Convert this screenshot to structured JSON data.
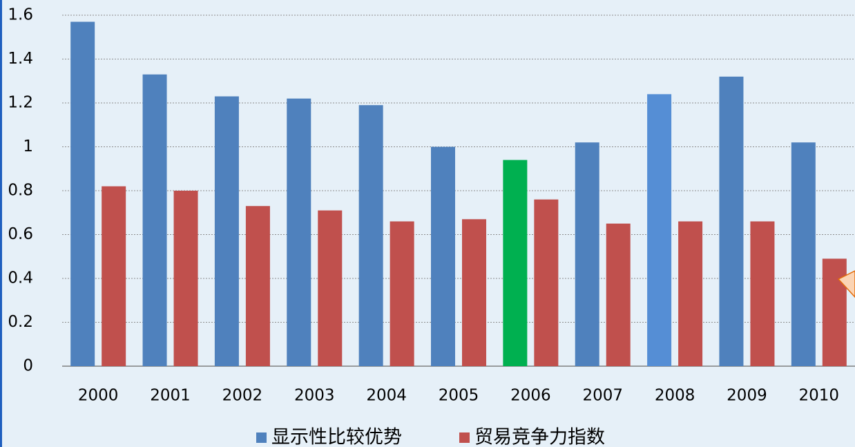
{
  "chart_data": {
    "type": "bar",
    "categories": [
      "2000",
      "2001",
      "2002",
      "2003",
      "2004",
      "2005",
      "2006",
      "2007",
      "2008",
      "2009",
      "2010"
    ],
    "series": [
      {
        "name": "显示性比较优势",
        "color": "#4f81bd",
        "colors": [
          "#4f81bd",
          "#4f81bd",
          "#4f81bd",
          "#4f81bd",
          "#4f81bd",
          "#4f81bd",
          "#00b050",
          "#4f81bd",
          "#558ed5",
          "#4f81bd",
          "#4f81bd"
        ],
        "values": [
          1.57,
          1.33,
          1.23,
          1.22,
          1.19,
          1.0,
          0.94,
          1.02,
          1.24,
          1.32,
          1.02
        ]
      },
      {
        "name": "贸易竞争力指数",
        "color": "#c0504d",
        "values": [
          0.82,
          0.8,
          0.73,
          0.71,
          0.66,
          0.67,
          0.76,
          0.65,
          0.66,
          0.66,
          0.49
        ]
      }
    ],
    "ylim": [
      0,
      1.6
    ],
    "yticks": [
      0,
      0.2,
      0.4,
      0.6,
      0.8,
      1,
      1.2,
      1.4,
      1.6
    ],
    "grid": true,
    "legend": "bottom"
  }
}
